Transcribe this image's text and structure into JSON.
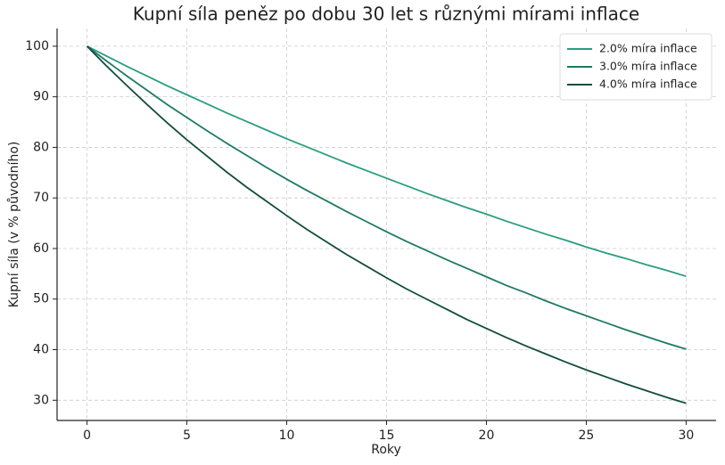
{
  "chart_data": {
    "type": "line",
    "title": "Kupní síla peněz po dobu 30 let s různými mírami inflace",
    "x_label": "Roky",
    "y_label": "Kupní síla (v % původního)",
    "x": [
      0,
      1,
      2,
      3,
      4,
      5,
      6,
      7,
      8,
      9,
      10,
      11,
      12,
      13,
      14,
      15,
      16,
      17,
      18,
      19,
      20,
      21,
      22,
      23,
      24,
      25,
      26,
      27,
      28,
      29,
      30
    ],
    "series": [
      {
        "name": "2.0% míra inflace",
        "color": "#2a9d80",
        "values": [
          100,
          98.0,
          96.0,
          94.1,
          92.2,
          90.4,
          88.6,
          86.8,
          85.1,
          83.4,
          81.7,
          80.1,
          78.5,
          76.9,
          75.4,
          73.9,
          72.4,
          70.9,
          69.5,
          68.1,
          66.8,
          65.4,
          64.1,
          62.8,
          61.6,
          60.3,
          59.1,
          58.0,
          56.8,
          55.7,
          54.5
        ]
      },
      {
        "name": "3.0% míra inflace",
        "color": "#1f7a64",
        "values": [
          100,
          97.0,
          94.1,
          91.3,
          88.5,
          85.9,
          83.3,
          80.8,
          78.4,
          76.0,
          73.7,
          71.5,
          69.4,
          67.3,
          65.3,
          63.3,
          61.4,
          59.6,
          57.8,
          56.1,
          54.4,
          52.7,
          51.2,
          49.6,
          48.1,
          46.7,
          45.3,
          43.9,
          42.6,
          41.3,
          40.1
        ]
      },
      {
        "name": "4.0% míra inflace",
        "color": "#124d3d",
        "values": [
          100,
          96.0,
          92.2,
          88.5,
          84.9,
          81.5,
          78.3,
          75.1,
          72.1,
          69.3,
          66.5,
          63.8,
          61.3,
          58.8,
          56.5,
          54.2,
          52.0,
          50.0,
          48.0,
          46.0,
          44.2,
          42.4,
          40.7,
          39.1,
          37.5,
          36.0,
          34.6,
          33.2,
          31.9,
          30.6,
          29.4
        ]
      }
    ],
    "xlim": [
      -1.5,
      31.5
    ],
    "xticks": [
      0,
      5,
      10,
      15,
      20,
      25,
      30
    ],
    "ylim": [
      26,
      103.5
    ],
    "yticks": [
      30,
      40,
      50,
      60,
      70,
      80,
      90,
      100
    ],
    "grid": true,
    "legend": "upper-right"
  }
}
